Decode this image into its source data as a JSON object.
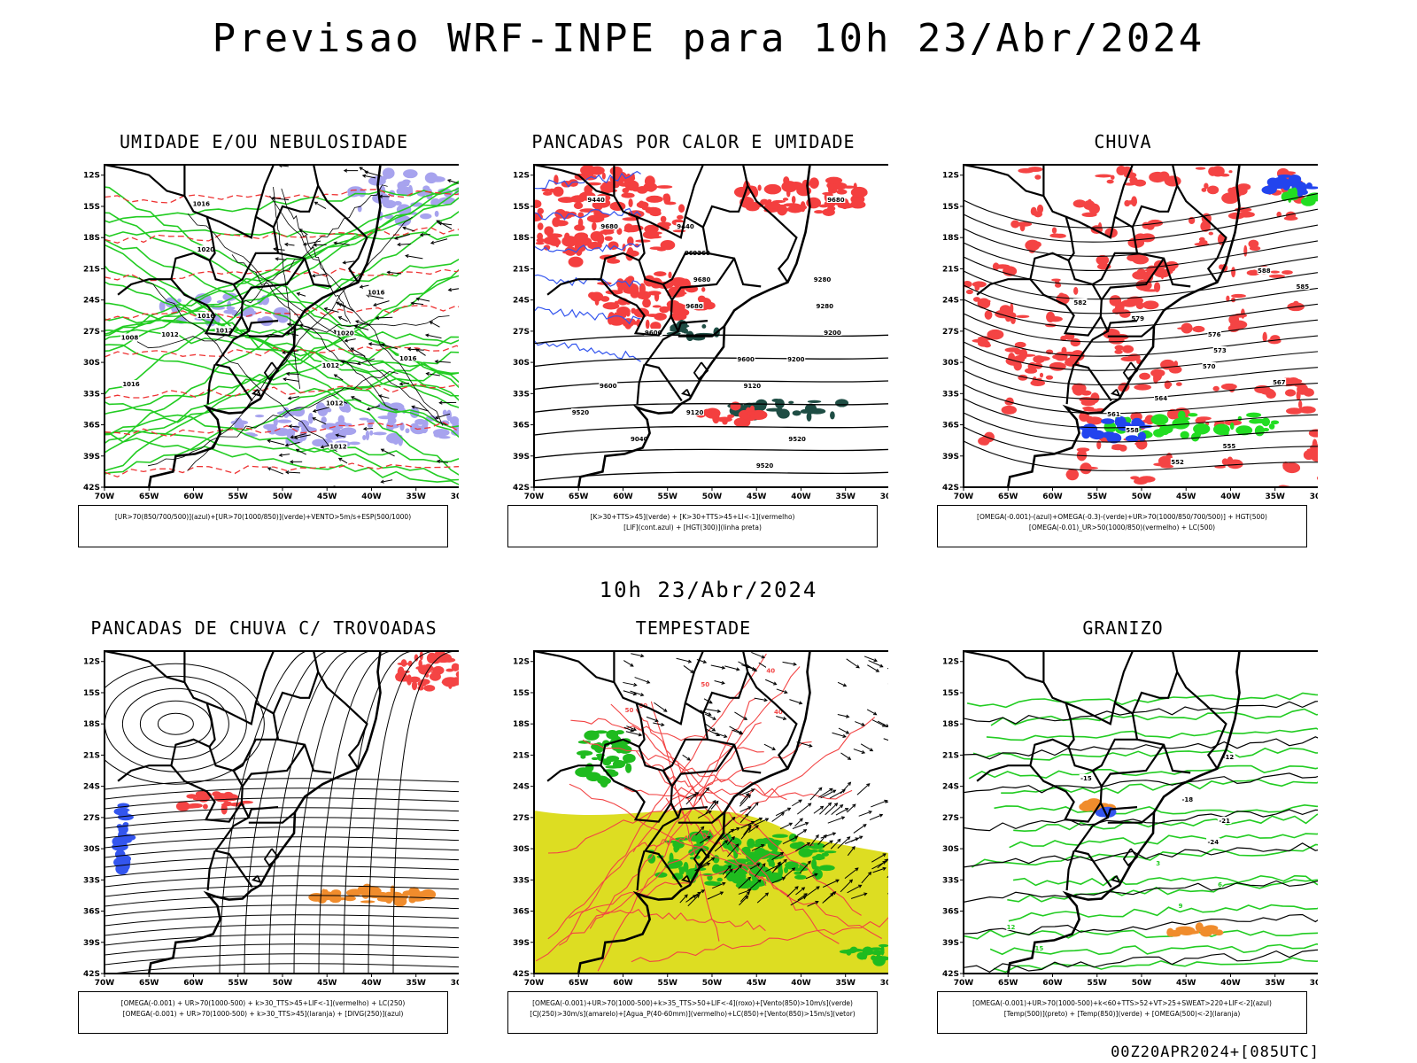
{
  "title": "Previsao WRF-INPE  para 10h 23/Abr/2024",
  "mid_time": "10h 23/Abr/2024",
  "footer": "00Z20APR2024+[085UTC]",
  "axes": {
    "lat_labels": [
      "12S",
      "15S",
      "18S",
      "21S",
      "24S",
      "27S",
      "30S",
      "33S",
      "36S",
      "39S",
      "42S"
    ],
    "lon_labels": [
      "70W",
      "65W",
      "60W",
      "55W",
      "50W",
      "45W",
      "40W",
      "35W",
      "30W"
    ]
  },
  "panels": [
    {
      "id": "umidade",
      "title": "UMIDADE E/OU NEBULOSIDADE",
      "legend": [
        "[UR>70(850/700/500)](azul)+[UR>70(1000/850)](verde)+VENTO>5m/s+ESP(500/1000)"
      ],
      "contour_labels": [
        "1012",
        "1016",
        "1020",
        "1012",
        "1016",
        "1012",
        "1016",
        "1020",
        "1016",
        "1012",
        "1008",
        "1016",
        "1012"
      ],
      "colors": {
        "humid_upper": "#a7a3ee",
        "humid_lower": "#22cc22",
        "thickness": "#ee3333"
      }
    },
    {
      "id": "pancadas",
      "title": "PANCADAS POR CALOR E UMIDADE",
      "legend": [
        "[K>30+TTS>45](verde) + [K>30+TTS>45+LI<-1](vermelho)",
        "[LIF](cont.azul) + [HGT(300)](linha preta)"
      ],
      "contour_labels": [
        "9680",
        "9680",
        "9680",
        "9680",
        "9680",
        "9600",
        "9600",
        "9600",
        "9520",
        "9520",
        "9520",
        "9440",
        "9440",
        "9360",
        "9280",
        "9280",
        "9200",
        "9200",
        "9120",
        "9120",
        "9040"
      ],
      "colors": {
        "instab": "#f43f3f",
        "green": "#1e4d44",
        "lif": "#3355ee"
      }
    },
    {
      "id": "chuva",
      "title": "CHUVA",
      "legend": [
        "[OMEGA(-0.001)-(azul)+OMEGA(-0.3)-(verde)+UR>70(1000/850/700/500)] + HGT(500)",
        "[OMEGA(-0.01)_UR>50(1000/850)(vermelho) + LC(500)"
      ],
      "contour_labels": [
        "588",
        "585",
        "582",
        "579",
        "576",
        "573",
        "570",
        "567",
        "564",
        "561",
        "558",
        "555",
        "552"
      ],
      "colors": {
        "omega": "#2244ee",
        "omega_strong": "#22dd22",
        "rain": "#f44444"
      }
    },
    {
      "id": "trovoadas",
      "title": "PANCADAS DE CHUVA C/ TROVOADAS",
      "legend": [
        "[OMEGA(-0.001) + UR>70(1000-500) + k>30_TTS>45+LIF<-1](vermelho) + LC(250)",
        "[OMEGA(-0.001) + UR>70(1000-500) + k>30_TTS>45](laranja) + [DIVG(250)](azul)"
      ],
      "contour_labels": [],
      "colors": {
        "red": "#f44444",
        "orange": "#f08c2c",
        "blue": "#3355ee"
      }
    },
    {
      "id": "tempestade",
      "title": "TEMPESTADE",
      "legend": [
        "[OMEGA(-0.001)+UR>70(1000-500)+k>35_TTS>50+LIF<-4](roxo)+[Vento(850)>10m/s](verde)",
        "[CJ(250)>30m/s](amarelo)+[Agua_P(40-60mm)](vermelho)+LC(850)+[Vento(850)>15m/s](vetor)"
      ],
      "contour_labels": [
        "40",
        "50",
        "40",
        "50",
        "60"
      ],
      "colors": {
        "jet": "#dddd22",
        "wind": "#1fbb1f",
        "water": "#f24444"
      }
    },
    {
      "id": "granizo",
      "title": "GRANIZO",
      "legend": [
        "[OMEGA(-0.001)+UR>70(1000-500)+k<60+TTS>52+VT>25+SWEAT>220+LIF<-2](azul)",
        "[Temp(500)](preto) + [Temp(850)](verde) + [OMEGA(500)<-2](laranja)"
      ],
      "contour_labels": [
        "-12",
        "-15",
        "-18",
        "-21",
        "-24",
        "3",
        "6",
        "9",
        "12",
        "15"
      ],
      "colors": {
        "temp850": "#22cc22",
        "omega": "#f08c2c",
        "hail": "#3355ee"
      }
    }
  ]
}
